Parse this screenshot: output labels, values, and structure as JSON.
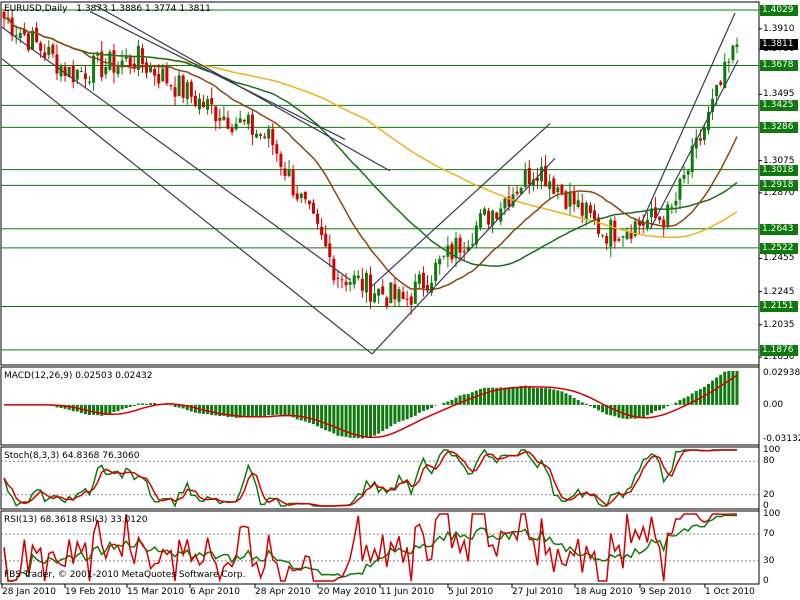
{
  "header": {
    "symbol": "EURUSD,Daily",
    "ohlc": "1.3873 1.3886 1.3774 1.3811"
  },
  "price_axis": {
    "labels": [
      "1.3910",
      "1.3780",
      "1.3495",
      "1.3075",
      "1.2870",
      "1.2455",
      "1.2245",
      "1.2035",
      "1.1830"
    ],
    "tags": [
      {
        "text": "1.4029",
        "kind": "green"
      },
      {
        "text": "1.3811",
        "kind": "black"
      },
      {
        "text": "1.3678",
        "kind": "green"
      },
      {
        "text": "1.3425",
        "kind": "green"
      },
      {
        "text": "1.3286",
        "kind": "green"
      },
      {
        "text": "1.3018",
        "kind": "green"
      },
      {
        "text": "1.2918",
        "kind": "green"
      },
      {
        "text": "1.2643",
        "kind": "green"
      },
      {
        "text": "1.2522",
        "kind": "green"
      },
      {
        "text": "1.2151",
        "kind": "green"
      },
      {
        "text": "1.1876",
        "kind": "green"
      }
    ]
  },
  "macd": {
    "title": "MACD(12,26,9) 0.02503 0.02432",
    "axis": [
      "0.02938",
      "0.00",
      "-0.03132"
    ]
  },
  "stoch": {
    "title": "Stoch(8,3,3) 64.8368 76.3060",
    "axis": [
      "100",
      "80",
      "20",
      "0"
    ]
  },
  "rsi": {
    "title": "RSI(13) 68.3618  RSI(3) 33.0120",
    "axis": [
      "100",
      "70",
      "30",
      "0"
    ]
  },
  "copyright": "FBS Trader, © 2001-2010 MetaQuotes Software Corp.",
  "dates": [
    "28 Jan 2010",
    "19 Feb 2010",
    "15 Mar 2010",
    "6 Apr 2010",
    "28 Apr 2010",
    "20 May 2010",
    "11 Jun 2010",
    "5 Jul 2010",
    "27 Jul 2010",
    "18 Aug 2010",
    "9 Sep 2010",
    "1 Oct 2010"
  ],
  "colors": {
    "bull": "#0e7a0e",
    "bear": "#d40000",
    "ma_slow": "#f0b020",
    "ma_mid": "#1a6e1a",
    "ma_fast": "#8b4513",
    "hline": "#0e7a0e",
    "trend": "#3a3a50"
  },
  "chart_data": {
    "type": "candlestick",
    "symbol": "EURUSD",
    "timeframe": "Daily",
    "last": {
      "open": 1.3873,
      "high": 1.3886,
      "low": 1.3774,
      "close": 1.3811
    },
    "horizontal_levels": [
      1.4029,
      1.3678,
      1.3425,
      1.3286,
      1.3018,
      1.2918,
      1.2643,
      1.2522,
      1.2151,
      1.1876
    ],
    "price_ylim": [
      1.178,
      1.408
    ],
    "close_path": [
      {
        "date": "28 Jan 2010",
        "close": 1.398
      },
      {
        "date": "19 Feb 2010",
        "close": 1.363
      },
      {
        "date": "15 Mar 2010",
        "close": 1.372
      },
      {
        "date": "6 Apr 2010",
        "close": 1.343
      },
      {
        "date": "28 Apr 2010",
        "close": 1.321
      },
      {
        "date": "20 May 2010",
        "close": 1.236
      },
      {
        "date": "11 Jun 2010",
        "close": 1.218
      },
      {
        "date": "5 Jul 2010",
        "close": 1.262
      },
      {
        "date": "27 Jul 2010",
        "close": 1.304
      },
      {
        "date": "18 Aug 2010",
        "close": 1.262
      },
      {
        "date": "9 Sep 2010",
        "close": 1.273
      },
      {
        "date": "1 Oct 2010",
        "close": 1.381
      }
    ]
  }
}
